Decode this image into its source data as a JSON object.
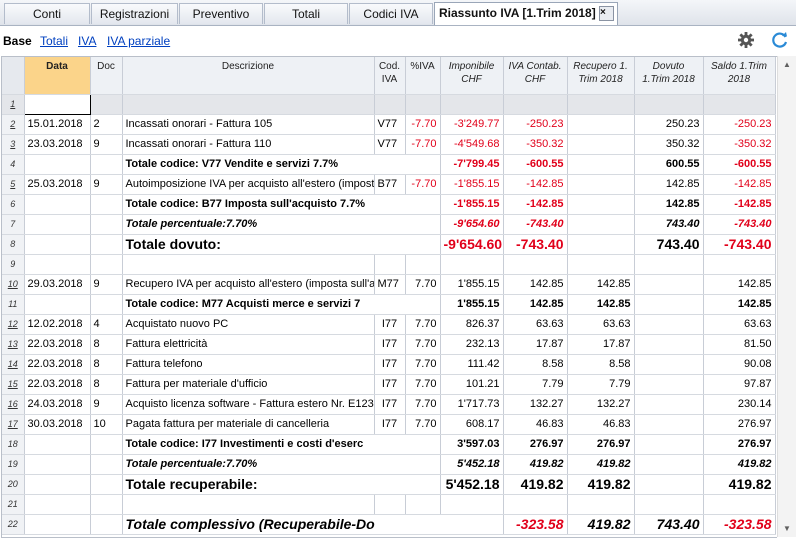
{
  "tabs": [
    {
      "label": "Conti"
    },
    {
      "label": "Registrazioni"
    },
    {
      "label": "Preventivo"
    },
    {
      "label": "Totali"
    },
    {
      "label": "Codici IVA"
    },
    {
      "label": "Riassunto IVA [1.Trim 2018]"
    }
  ],
  "close_glyph": "×",
  "subbar": {
    "views": [
      "Base",
      "Totali",
      "IVA",
      "IVA parziale"
    ]
  },
  "columns": [
    {
      "label": ""
    },
    {
      "label": "Data"
    },
    {
      "label": "Doc"
    },
    {
      "label": "Descrizione"
    },
    {
      "label": "Cod. IVA"
    },
    {
      "label": "%IVA"
    },
    {
      "label": "Imponibile CHF"
    },
    {
      "label": "IVA Contab. CHF"
    },
    {
      "label": "Recupero 1.Trim 2018"
    },
    {
      "label": "Dovuto 1.Trim 2018"
    },
    {
      "label": "Saldo 1.Trim 2018"
    }
  ],
  "rows": [
    {
      "n": "1",
      "date": "",
      "doc": "",
      "desc": "",
      "cod": "",
      "pct": "",
      "imp": "",
      "iva": "",
      "rec": "",
      "dov": "",
      "sal": ""
    },
    {
      "n": "2",
      "date": "15.01.2018",
      "doc": "2",
      "desc": "Incassati onorari - Fattura 105",
      "cod": "V77",
      "pct": "-7.70",
      "imp": "-3'249.77",
      "iva": "-250.23",
      "rec": "",
      "dov": "250.23",
      "sal": "-250.23"
    },
    {
      "n": "3",
      "date": "23.03.2018",
      "doc": "9",
      "desc": "Incassati onorari - Fattura 110",
      "cod": "V77",
      "pct": "-7.70",
      "imp": "-4'549.68",
      "iva": "-350.32",
      "rec": "",
      "dov": "350.32",
      "sal": "-350.32"
    },
    {
      "n": "4",
      "date": "",
      "doc": "",
      "desc": "Totale codice: V77 Vendite e servizi 7.7%",
      "cod": "",
      "pct": "",
      "imp": "-7'799.45",
      "iva": "-600.55",
      "rec": "",
      "dov": "600.55",
      "sal": "-600.55"
    },
    {
      "n": "5",
      "date": "25.03.2018",
      "doc": "9",
      "desc": "Autoimposizione IVA per acquisto all'estero (imposta",
      "cod": "B77",
      "pct": "-7.70",
      "imp": "-1'855.15",
      "iva": "-142.85",
      "rec": "",
      "dov": "142.85",
      "sal": "-142.85"
    },
    {
      "n": "6",
      "date": "",
      "doc": "",
      "desc": "Totale codice: B77 Imposta sull'acquisto 7.7%",
      "cod": "",
      "pct": "",
      "imp": "-1'855.15",
      "iva": "-142.85",
      "rec": "",
      "dov": "142.85",
      "sal": "-142.85"
    },
    {
      "n": "7",
      "date": "",
      "doc": "",
      "desc": "Totale percentuale:7.70%",
      "cod": "",
      "pct": "",
      "imp": "-9'654.60",
      "iva": "-743.40",
      "rec": "",
      "dov": "743.40",
      "sal": "-743.40"
    },
    {
      "n": "8",
      "date": "",
      "doc": "",
      "desc": "Totale dovuto:",
      "cod": "",
      "pct": "",
      "imp": "-9'654.60",
      "iva": "-743.40",
      "rec": "",
      "dov": "743.40",
      "sal": "-743.40"
    },
    {
      "n": "9",
      "date": "",
      "doc": "",
      "desc": "",
      "cod": "",
      "pct": "",
      "imp": "",
      "iva": "",
      "rec": "",
      "dov": "",
      "sal": ""
    },
    {
      "n": "10",
      "date": "29.03.2018",
      "doc": "9",
      "desc": "Recupero IVA per acquisto all'estero (imposta sull'a",
      "cod": "M77",
      "pct": "7.70",
      "imp": "1'855.15",
      "iva": "142.85",
      "rec": "142.85",
      "dov": "",
      "sal": "142.85"
    },
    {
      "n": "11",
      "date": "",
      "doc": "",
      "desc": "Totale codice: M77 Acquisti merce e servizi 7",
      "cod": "",
      "pct": "",
      "imp": "1'855.15",
      "iva": "142.85",
      "rec": "142.85",
      "dov": "",
      "sal": "142.85"
    },
    {
      "n": "12",
      "date": "12.02.2018",
      "doc": "4",
      "desc": "Acquistato nuovo PC",
      "cod": "I77",
      "pct": "7.70",
      "imp": "826.37",
      "iva": "63.63",
      "rec": "63.63",
      "dov": "",
      "sal": "63.63"
    },
    {
      "n": "13",
      "date": "22.03.2018",
      "doc": "8",
      "desc": "Fattura elettricità",
      "cod": "I77",
      "pct": "7.70",
      "imp": "232.13",
      "iva": "17.87",
      "rec": "17.87",
      "dov": "",
      "sal": "81.50"
    },
    {
      "n": "14",
      "date": "22.03.2018",
      "doc": "8",
      "desc": "Fattura telefono",
      "cod": "I77",
      "pct": "7.70",
      "imp": "111.42",
      "iva": "8.58",
      "rec": "8.58",
      "dov": "",
      "sal": "90.08"
    },
    {
      "n": "15",
      "date": "22.03.2018",
      "doc": "8",
      "desc": "Fattura per materiale d'ufficio",
      "cod": "I77",
      "pct": "7.70",
      "imp": "101.21",
      "iva": "7.79",
      "rec": "7.79",
      "dov": "",
      "sal": "97.87"
    },
    {
      "n": "16",
      "date": "24.03.2018",
      "doc": "9",
      "desc": "Acquisto licenza software - Fattura estero Nr. E123",
      "cod": "I77",
      "pct": "7.70",
      "imp": "1'717.73",
      "iva": "132.27",
      "rec": "132.27",
      "dov": "",
      "sal": "230.14"
    },
    {
      "n": "17",
      "date": "30.03.2018",
      "doc": "10",
      "desc": "Pagata fattura per materiale di cancelleria",
      "cod": "I77",
      "pct": "7.70",
      "imp": "608.17",
      "iva": "46.83",
      "rec": "46.83",
      "dov": "",
      "sal": "276.97"
    },
    {
      "n": "18",
      "date": "",
      "doc": "",
      "desc": "Totale codice: I77 Investimenti e costi d'eserc",
      "cod": "",
      "pct": "",
      "imp": "3'597.03",
      "iva": "276.97",
      "rec": "276.97",
      "dov": "",
      "sal": "276.97"
    },
    {
      "n": "19",
      "date": "",
      "doc": "",
      "desc": "Totale percentuale:7.70%",
      "cod": "",
      "pct": "",
      "imp": "5'452.18",
      "iva": "419.82",
      "rec": "419.82",
      "dov": "",
      "sal": "419.82"
    },
    {
      "n": "20",
      "date": "",
      "doc": "",
      "desc": "Totale recuperabile:",
      "cod": "",
      "pct": "",
      "imp": "5'452.18",
      "iva": "419.82",
      "rec": "419.82",
      "dov": "",
      "sal": "419.82"
    },
    {
      "n": "21",
      "date": "",
      "doc": "",
      "desc": "",
      "cod": "",
      "pct": "",
      "imp": "",
      "iva": "",
      "rec": "",
      "dov": "",
      "sal": ""
    },
    {
      "n": "22",
      "date": "",
      "doc": "",
      "desc": "Totale complessivo (Recuperabile-Do",
      "cod": "",
      "pct": "",
      "imp": "",
      "iva": "-323.58",
      "rec": "419.82",
      "dov": "743.40",
      "sal": "-323.58"
    }
  ]
}
